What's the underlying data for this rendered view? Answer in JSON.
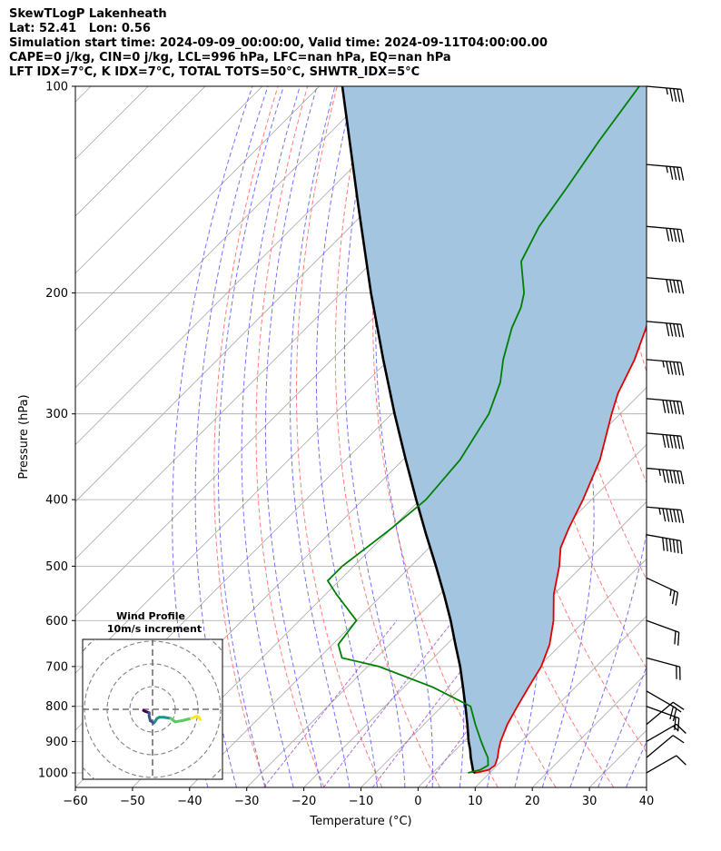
{
  "header": {
    "line1": "SkewTLogP Lakenheath",
    "line2": "Lat: 52.41   Lon: 0.56",
    "line3": "Simulation start time: 2024-09-09_00:00:00, Valid time: 2024-09-11T04:00:00.00",
    "line4": "CAPE=0 j/kg, CIN=0 j/kg, LCL=996 hPa, LFC=nan hPa, EQ=nan hPa",
    "line5": "LFT IDX=7°C, K IDX=7°C, TOTAL TOTS=50°C, SHWTR_IDX=5°C"
  },
  "chart_data": {
    "type": "line",
    "title": "SkewTLogP Lakenheath",
    "xlabel": "Temperature (°C)",
    "ylabel": "Pressure (hPa)",
    "xlim": [
      -60,
      40
    ],
    "ylim": [
      1050,
      100
    ],
    "y_scale": "log",
    "x_ticks": [
      "−60",
      "−50",
      "−40",
      "−30",
      "−20",
      "−10",
      "0",
      "10",
      "20",
      "30",
      "40"
    ],
    "y_ticks": [
      "100",
      "200",
      "300",
      "400",
      "500",
      "600",
      "700",
      "800",
      "900",
      "1000"
    ],
    "grid": true,
    "colors": {
      "temperature": "#e00000",
      "dewpoint": "#008000",
      "parcel": "#000000",
      "shade": "#a3c5df",
      "dry_adiabat": "#ff6e6e",
      "moist_adiabat": "#5a5aff",
      "mixing_ratio": "#9b4fcf",
      "isotherm": "#a8a8a8"
    },
    "series": [
      {
        "key": "temperature",
        "pressure": [
          1000,
          990,
          975,
          950,
          925,
          900,
          850,
          800,
          750,
          700,
          650,
          600,
          550,
          500,
          470,
          440,
          400,
          350,
          300,
          280,
          250,
          225,
          200,
          175,
          160,
          150,
          135,
          120,
          110,
          100
        ],
        "temperature": [
          7.5,
          9.3,
          9.6,
          8.7,
          7.5,
          6.4,
          4.6,
          3.2,
          1.8,
          0.4,
          -2.0,
          -5.5,
          -10.0,
          -14.0,
          -17.0,
          -19.0,
          -21.5,
          -25.5,
          -31.5,
          -34.0,
          -37.0,
          -40.5,
          -45.0,
          -50.5,
          -54.0,
          -55.5,
          -57.5,
          -58.0,
          -59.5,
          -61.0
        ]
      },
      {
        "key": "dewpoint",
        "pressure": [
          1000,
          990,
          975,
          950,
          925,
          900,
          850,
          800,
          750,
          700,
          680,
          650,
          600,
          550,
          525,
          500,
          470,
          440,
          400,
          350,
          300,
          270,
          250,
          225,
          210,
          200,
          180,
          160,
          140,
          120,
          100
        ],
        "temperature": [
          6.2,
          7.8,
          8.4,
          7.0,
          5.0,
          3.0,
          -1.0,
          -5.0,
          -15.0,
          -28.0,
          -36.0,
          -39.0,
          -40.0,
          -48.0,
          -52.0,
          -52.0,
          -51.0,
          -50.0,
          -49.0,
          -50.0,
          -53.0,
          -56.5,
          -60.0,
          -64.0,
          -66.0,
          -68.0,
          -74.0,
          -77.0,
          -79.0,
          -81.5,
          -84.0
        ]
      },
      {
        "key": "parcel",
        "pressure": [
          1000,
          996,
          975,
          950,
          925,
          900,
          850,
          800,
          750,
          700,
          650,
          600,
          550,
          500,
          450,
          400,
          350,
          300,
          250,
          200,
          150,
          100
        ],
        "temperature": [
          7.5,
          6.9,
          5.6,
          4.0,
          2.5,
          0.8,
          -2.4,
          -5.9,
          -9.7,
          -13.8,
          -18.5,
          -23.5,
          -29.2,
          -35.6,
          -42.8,
          -50.7,
          -59.5,
          -69.5,
          -81.0,
          -94.8,
          -112.0,
          -136.0
        ]
      }
    ],
    "wind_barbs": {
      "pressure": [
        100,
        130,
        160,
        190,
        220,
        250,
        285,
        320,
        360,
        410,
        450,
        520,
        600,
        680,
        760,
        800,
        850,
        900,
        950,
        1000
      ],
      "speed_kt": [
        45,
        45,
        50,
        50,
        50,
        55,
        60,
        60,
        65,
        65,
        60,
        25,
        20,
        20,
        20,
        20,
        20,
        15,
        10,
        10
      ],
      "direction_deg": [
        275,
        275,
        275,
        275,
        275,
        275,
        275,
        275,
        275,
        275,
        280,
        295,
        290,
        285,
        300,
        290,
        230,
        240,
        230,
        240
      ]
    },
    "inset": {
      "title": "Wind Profile",
      "subtitle": "10m/s increment",
      "type": "hodograph",
      "ring_spacing_ms": 10,
      "u": [
        -4.0,
        -3.0,
        -1.5,
        -1.5,
        -1.0,
        0.5,
        1.0,
        2.0,
        3.0,
        5.0,
        8.0,
        10.0,
        13.0,
        15.0,
        17.0,
        19.5,
        20.5,
        21.0
      ],
      "v": [
        -0.5,
        -1.0,
        -1.5,
        -3.0,
        -5.0,
        -6.0,
        -5.5,
        -4.0,
        -3.5,
        -3.5,
        -4.0,
        -5.5,
        -5.0,
        -4.5,
        -4.0,
        -3.0,
        -3.5,
        -4.5
      ]
    }
  }
}
